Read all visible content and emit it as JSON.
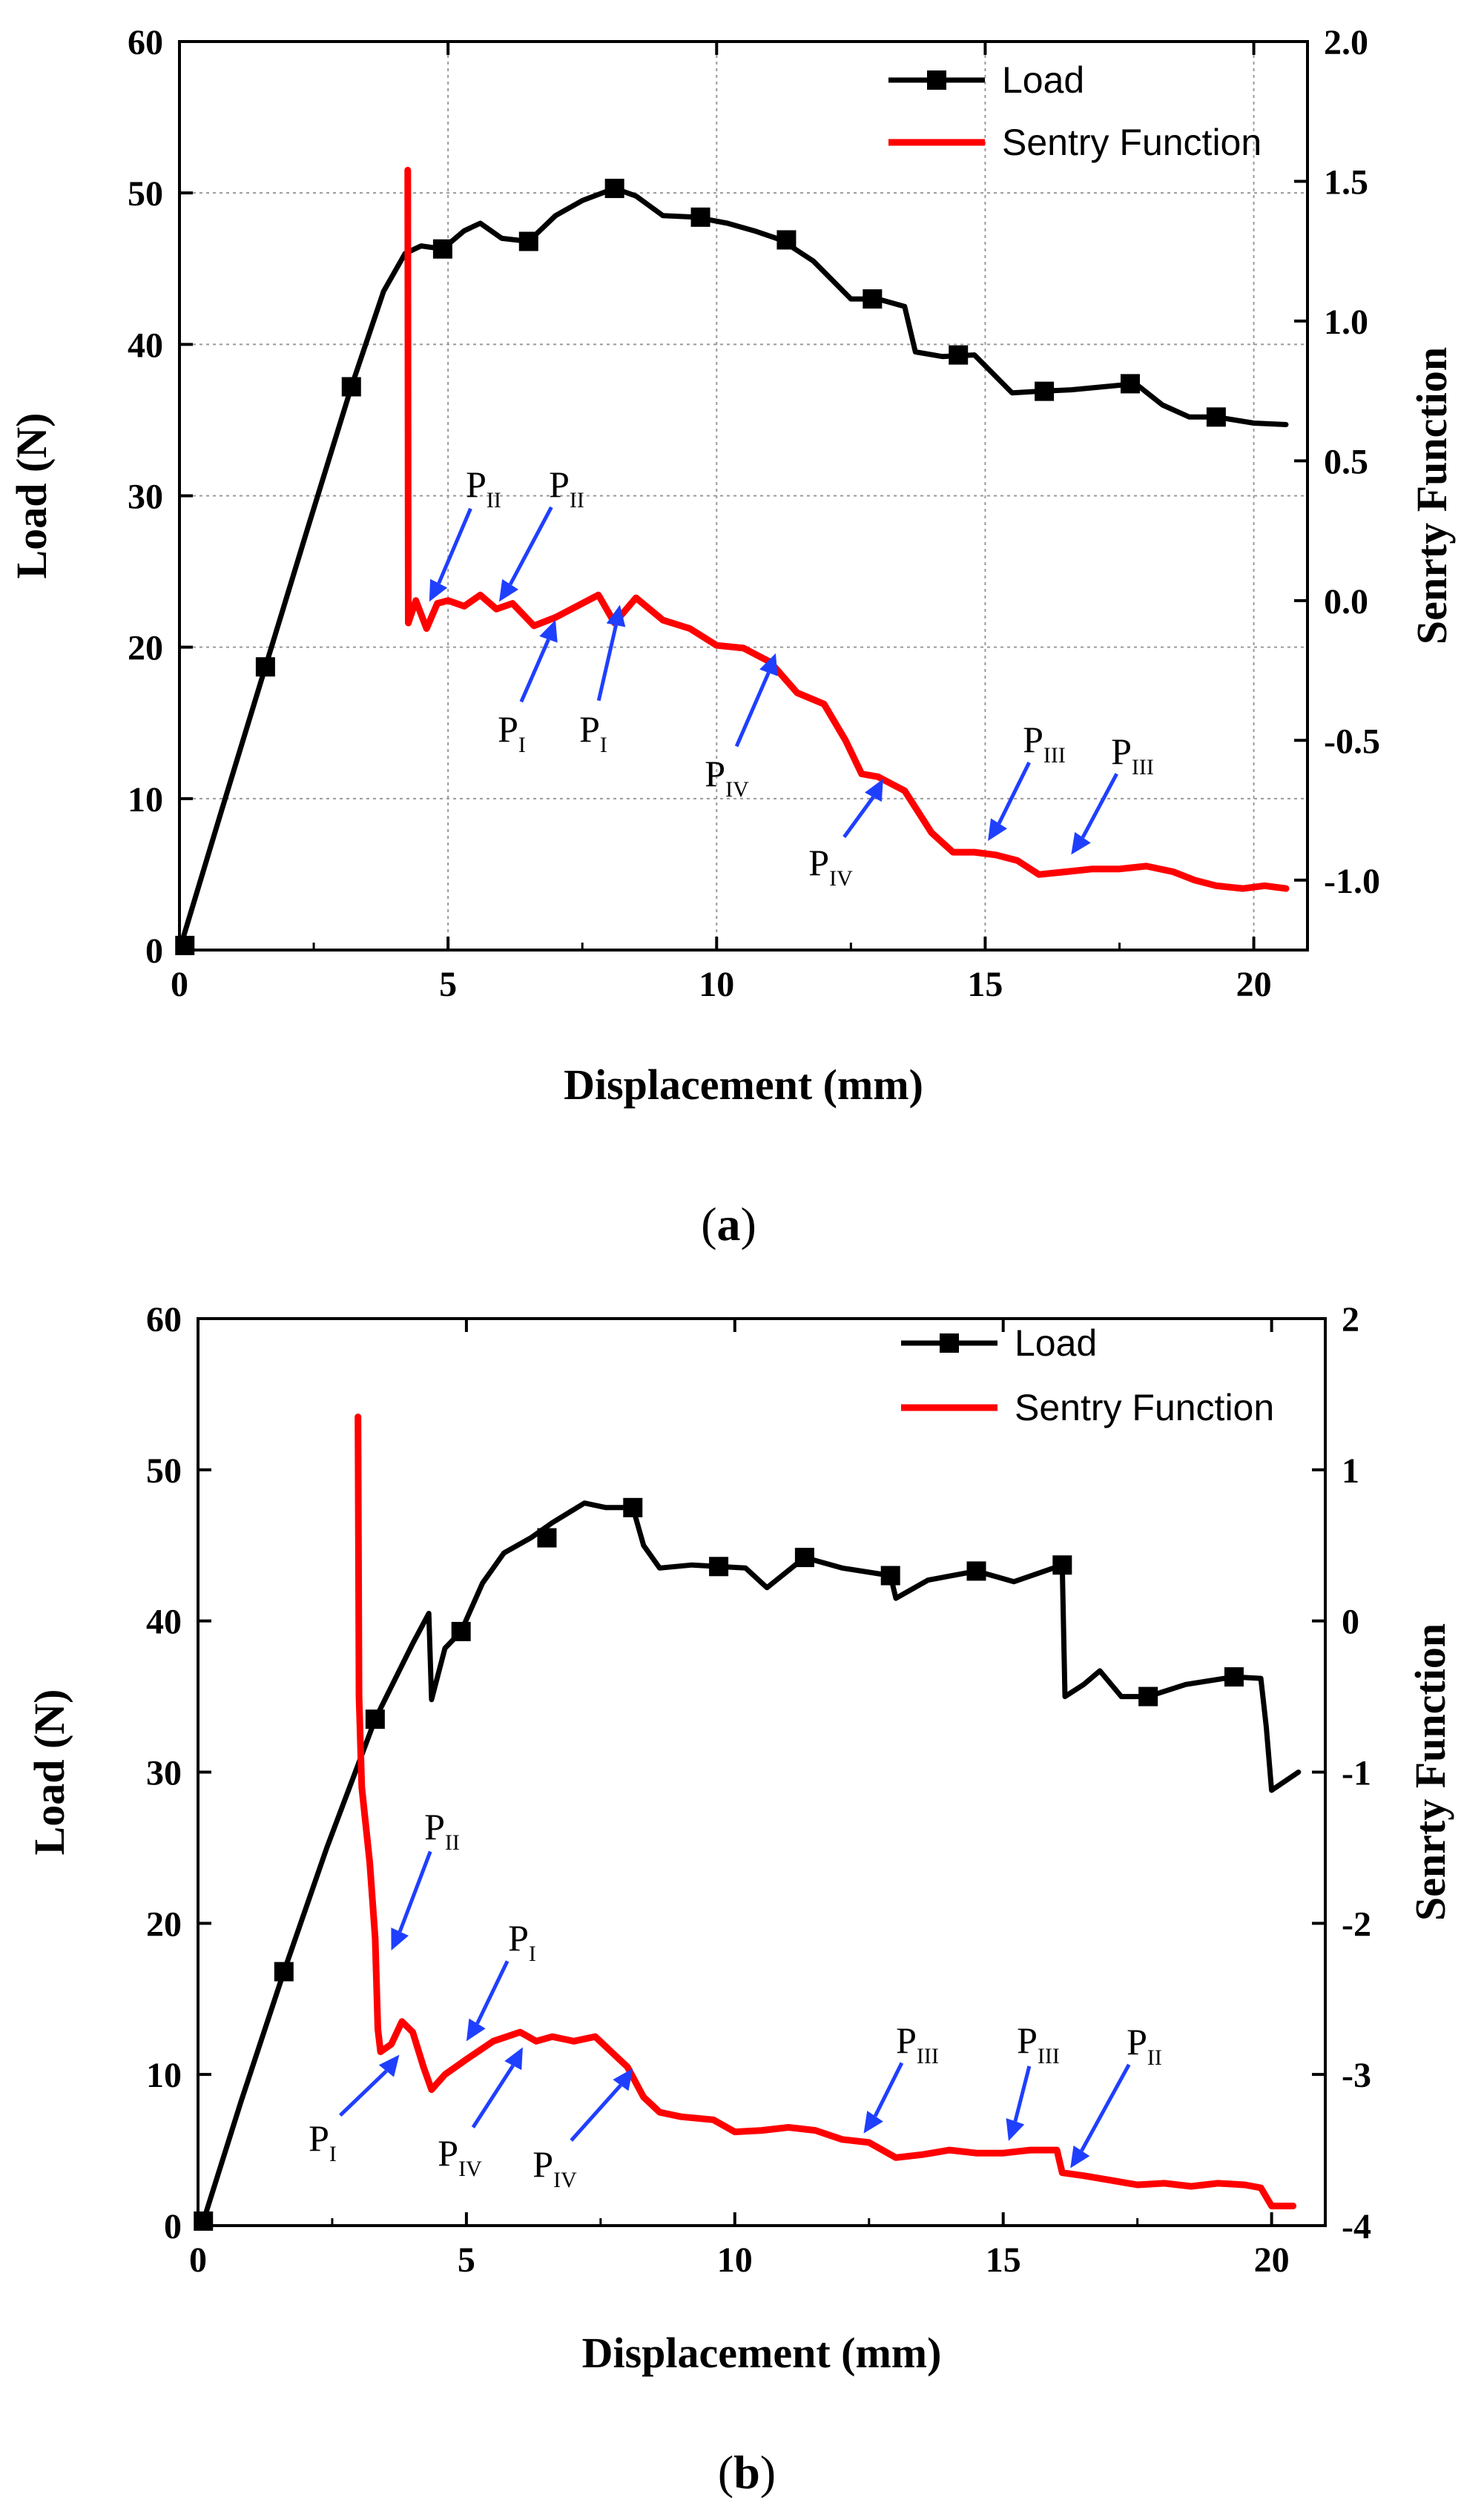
{
  "chart_data": [
    {
      "panel": "(a)",
      "caption_open": "(",
      "caption_letter": "a",
      "caption_close": ")",
      "type": "line",
      "xlabel": "Displacement (mm)",
      "ylabel": "Load (N)",
      "y2label": "Senrty Function",
      "xlim": [
        0,
        21
      ],
      "ylim": [
        0,
        60
      ],
      "y2lim": [
        -1.25,
        2.0
      ],
      "xticks": [
        0,
        5,
        10,
        15,
        20
      ],
      "xtick_labels": [
        "0",
        "5",
        "10",
        "15",
        "20"
      ],
      "yticks": [
        0,
        10,
        20,
        30,
        40,
        50,
        60
      ],
      "ytick_labels": [
        "0",
        "10",
        "20",
        "30",
        "40",
        "50",
        "60"
      ],
      "y2ticks": [
        -1.0,
        -0.5,
        0.0,
        0.5,
        1.0,
        1.5,
        2.0
      ],
      "y2tick_labels": [
        "-1.0",
        "-0.5",
        "0.0",
        "0.5",
        "1.0",
        "1.5",
        "2.0"
      ],
      "grid": true,
      "legend_position": "top-right",
      "series": [
        {
          "name": "Load",
          "axis": "left",
          "color": "#000000",
          "marker": "square",
          "x": [
            0,
            0.8,
            1.6,
            2.4,
            3.2,
            3.8,
            4.2,
            4.5,
            4.9,
            5.3,
            5.6,
            6.0,
            6.5,
            7.0,
            7.5,
            8.1,
            8.5,
            9.0,
            9.6,
            10.2,
            10.7,
            11.2,
            11.8,
            12.5,
            13.0,
            13.5,
            13.7,
            14.2,
            14.8,
            15.5,
            16.0,
            16.6,
            17.2,
            17.8,
            18.3,
            18.8,
            19.3,
            20.0,
            20.6
          ],
          "y": [
            0,
            9.4,
            18.7,
            28,
            37.2,
            43.5,
            46,
            46.5,
            46.3,
            47.5,
            48,
            47,
            46.8,
            48.5,
            49.5,
            50.3,
            49.8,
            48.5,
            48.4,
            48.0,
            47.5,
            46.9,
            45.5,
            43,
            43,
            42.5,
            39.5,
            39.2,
            39.3,
            36.8,
            36.9,
            37,
            37.2,
            37.4,
            36,
            35.2,
            35.2,
            34.8,
            34.7
          ],
          "marker_x": [
            0.1,
            1.6,
            3.2,
            4.9,
            6.5,
            8.1,
            9.7,
            11.3,
            12.9,
            14.5,
            16.1,
            17.7,
            19.3
          ],
          "marker_y": [
            0.3,
            18.7,
            37.2,
            46.3,
            46.8,
            50.3,
            48.4,
            46.9,
            43.0,
            39.3,
            36.9,
            37.4,
            35.2
          ],
          "label": "Load"
        },
        {
          "name": "Sentry Function",
          "axis": "right",
          "color": "#ff0000",
          "x": [
            4.25,
            4.26,
            4.4,
            4.6,
            4.8,
            5.0,
            5.3,
            5.6,
            5.9,
            6.2,
            6.6,
            7.0,
            7.4,
            7.8,
            8.1,
            8.5,
            9.0,
            9.5,
            10.0,
            10.5,
            11.0,
            11.5,
            12.0,
            12.4,
            12.7,
            13.0,
            13.5,
            14.0,
            14.4,
            14.8,
            15.2,
            15.6,
            16.0,
            16.5,
            17.0,
            17.5,
            18.0,
            18.5,
            18.9,
            19.3,
            19.8,
            20.2,
            20.6
          ],
          "y": [
            1.54,
            -0.08,
            0.0,
            -0.1,
            -0.01,
            0.0,
            -0.02,
            0.02,
            -0.03,
            -0.01,
            -0.09,
            -0.06,
            -0.02,
            0.02,
            -0.08,
            0.01,
            -0.07,
            -0.1,
            -0.16,
            -0.17,
            -0.22,
            -0.33,
            -0.37,
            -0.5,
            -0.62,
            -0.63,
            -0.68,
            -0.83,
            -0.9,
            -0.9,
            -0.91,
            -0.93,
            -0.98,
            -0.97,
            -0.96,
            -0.96,
            -0.95,
            -0.97,
            -1.0,
            -1.02,
            -1.03,
            -1.02,
            -1.03
          ],
          "label": "Sentry Function"
        }
      ],
      "annotations": [
        {
          "main": "P",
          "sub": "II",
          "tip_x": 4.65,
          "tip_y": 23
        },
        {
          "main": "P",
          "sub": "II",
          "tip_x": 5.95,
          "tip_y": 23
        },
        {
          "main": "P",
          "sub": "I",
          "tip_x": 7.0,
          "tip_y": 21.8
        },
        {
          "main": "P",
          "sub": "I",
          "tip_x": 8.2,
          "tip_y": 22.8
        },
        {
          "main": "P",
          "sub": "IV",
          "tip_x": 11.1,
          "tip_y": 19.6
        },
        {
          "main": "P",
          "sub": "IV",
          "tip_x": 13.1,
          "tip_y": 11.3
        },
        {
          "main": "P",
          "sub": "III",
          "tip_x": 15.05,
          "tip_y": 7.2
        },
        {
          "main": "P",
          "sub": "III",
          "tip_x": 16.6,
          "tip_y": 6.3
        }
      ]
    },
    {
      "panel": "(b)",
      "caption_open": "(",
      "caption_letter": "b",
      "caption_close": ")",
      "type": "line",
      "xlabel": "Displacement (mm)",
      "ylabel": "Load (N)",
      "y2label": "Senrty Function",
      "xlim": [
        0,
        21
      ],
      "ylim": [
        0,
        60
      ],
      "y2lim": [
        -4,
        2
      ],
      "xticks": [
        0,
        5,
        10,
        15,
        20
      ],
      "xtick_labels": [
        "0",
        "5",
        "10",
        "15",
        "20"
      ],
      "yticks": [
        0,
        10,
        20,
        30,
        40,
        50,
        60
      ],
      "ytick_labels": [
        "0",
        "10",
        "20",
        "30",
        "40",
        "50",
        "60"
      ],
      "y2ticks": [
        -4,
        -3,
        -2,
        -1,
        0,
        1,
        2
      ],
      "y2tick_labels": [
        "-4",
        "-3",
        "-2",
        "-1",
        "0",
        "1",
        "2"
      ],
      "grid": false,
      "legend_position": "top-right",
      "series": [
        {
          "name": "Load",
          "axis": "left",
          "color": "#000000",
          "marker": "square",
          "x": [
            0.1,
            0.8,
            1.6,
            2.4,
            3.3,
            4.0,
            4.3,
            4.35,
            4.6,
            4.9,
            5.3,
            5.7,
            6.2,
            6.6,
            7.2,
            7.6,
            8.1,
            8.3,
            8.6,
            9.2,
            9.7,
            10.2,
            10.6,
            11.3,
            12.0,
            12.9,
            13.0,
            13.6,
            14.5,
            15.2,
            16.1,
            16.15,
            16.5,
            16.8,
            17.2,
            17.7,
            18.4,
            19.3,
            19.8,
            19.9,
            20.0,
            20.5
          ],
          "y": [
            0.3,
            8.2,
            16.8,
            25,
            33.5,
            38.5,
            40.5,
            34.8,
            38.2,
            39.3,
            42.5,
            44.5,
            45.5,
            46.5,
            47.8,
            47.5,
            47.5,
            45,
            43.5,
            43.7,
            43.6,
            43.5,
            42.2,
            44.2,
            43.5,
            43.0,
            41.5,
            42.7,
            43.3,
            42.6,
            43.7,
            35,
            35.8,
            36.7,
            35,
            35.0,
            35.8,
            36.3,
            36.2,
            33,
            28.8,
            30
          ],
          "marker_x": [
            0.1,
            1.6,
            3.3,
            4.9,
            6.5,
            8.1,
            9.7,
            11.3,
            12.9,
            14.5,
            16.1,
            17.7,
            19.3
          ],
          "marker_y": [
            0.3,
            16.8,
            33.5,
            39.3,
            45.5,
            47.5,
            43.6,
            44.2,
            43.0,
            43.3,
            43.7,
            35.0,
            36.3
          ],
          "label": "Load"
        },
        {
          "name": "Sentry Function",
          "axis": "right",
          "color": "#ff0000",
          "x": [
            2.98,
            3.0,
            3.05,
            3.2,
            3.3,
            3.35,
            3.4,
            3.6,
            3.8,
            4.0,
            4.2,
            4.35,
            4.6,
            5.0,
            5.5,
            6.0,
            6.3,
            6.6,
            7.0,
            7.4,
            7.7,
            8.0,
            8.3,
            8.6,
            9.0,
            9.6,
            10.0,
            10.5,
            11.0,
            11.5,
            12.0,
            12.5,
            13.0,
            13.5,
            14.0,
            14.5,
            15.0,
            15.5,
            16.0,
            16.1,
            16.5,
            17.0,
            17.5,
            18.0,
            18.5,
            19.0,
            19.5,
            19.8,
            20.0,
            20.4
          ],
          "y": [
            1.35,
            -0.5,
            -1.1,
            -1.6,
            -2.1,
            -2.7,
            -2.85,
            -2.8,
            -2.65,
            -2.72,
            -2.95,
            -3.1,
            -3.0,
            -2.9,
            -2.78,
            -2.72,
            -2.78,
            -2.75,
            -2.78,
            -2.75,
            -2.85,
            -2.95,
            -3.15,
            -3.25,
            -3.28,
            -3.3,
            -3.38,
            -3.37,
            -3.35,
            -3.37,
            -3.43,
            -3.45,
            -3.55,
            -3.53,
            -3.5,
            -3.52,
            -3.52,
            -3.5,
            -3.5,
            -3.65,
            -3.67,
            -3.7,
            -3.73,
            -3.72,
            -3.74,
            -3.72,
            -3.73,
            -3.75,
            -3.87,
            -3.87
          ],
          "label": "Sentry Function"
        }
      ],
      "annotations": [
        {
          "main": "P",
          "sub": "II",
          "tip_x": 3.6,
          "tip_y": 18.2
        },
        {
          "main": "P",
          "sub": "I",
          "tip_x": 5.0,
          "tip_y": 12.2
        },
        {
          "main": "P",
          "sub": "I",
          "tip_x": 3.75,
          "tip_y": 11.3
        },
        {
          "main": "P",
          "sub": "IV",
          "tip_x": 6.05,
          "tip_y": 11.8
        },
        {
          "main": "P",
          "sub": "IV",
          "tip_x": 8.1,
          "tip_y": 10.4
        },
        {
          "main": "P",
          "sub": "III",
          "tip_x": 12.4,
          "tip_y": 6.1
        },
        {
          "main": "P",
          "sub": "III",
          "tip_x": 15.1,
          "tip_y": 5.6
        },
        {
          "main": "P",
          "sub": "II",
          "tip_x": 16.25,
          "tip_y": 3.8
        }
      ]
    }
  ]
}
